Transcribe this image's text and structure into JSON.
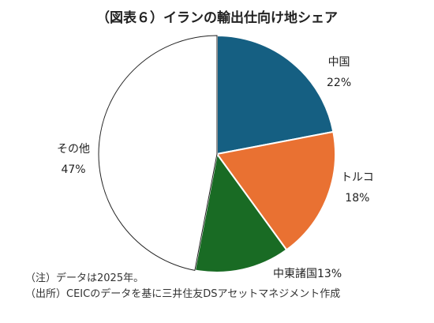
{
  "chart_data": {
    "type": "pie",
    "title": "（図表６）イランの輸出仕向け地シェア",
    "slices": [
      {
        "name": "中国",
        "value": 22,
        "label": "22%",
        "color": "#155f82"
      },
      {
        "name": "トルコ",
        "value": 18,
        "label": "18%",
        "color": "#e97132"
      },
      {
        "name": "中東諸国",
        "value": 13,
        "label": "13%",
        "color": "#196b24"
      },
      {
        "name": "その他",
        "value": 47,
        "label": "47%",
        "color": "#ffffff"
      }
    ]
  },
  "notes": [
    "（注）データは2025年。",
    "（出所）CEICのデータを基に三井住友DSアセットマネジメント作成"
  ]
}
